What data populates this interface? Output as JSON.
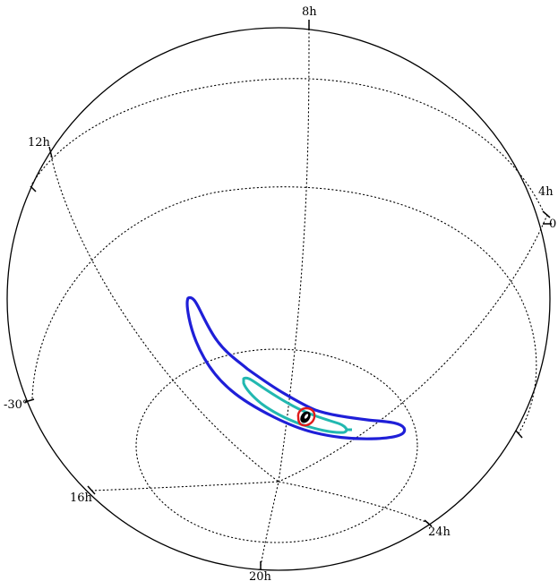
{
  "figure": {
    "ra_labels": [
      "8h",
      "12h",
      "4h",
      "16h",
      "20h",
      "24h"
    ],
    "dec_labels": [
      "0",
      "-30°"
    ],
    "colors": {
      "outline": "#000000",
      "grid": "#000000",
      "contour_outer": "#1f1fd8",
      "contour_middle": "#22b8b0",
      "contour_inner": "#e01b1b",
      "core": "#000000"
    }
  }
}
